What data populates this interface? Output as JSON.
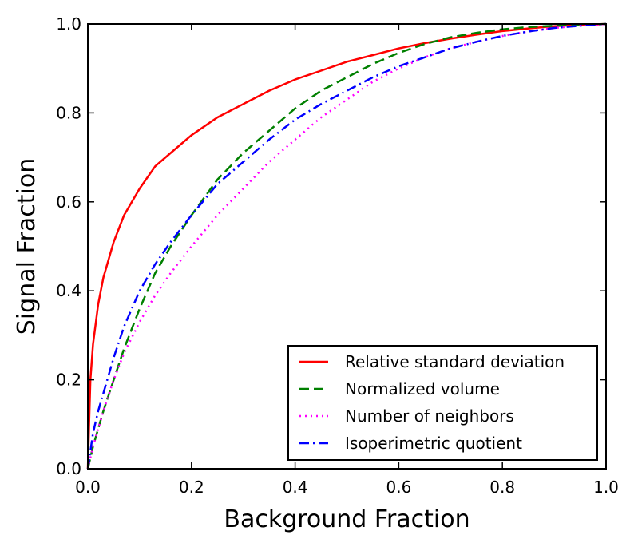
{
  "chart_data": {
    "type": "line",
    "title": "",
    "xlabel": "Background Fraction",
    "ylabel": "Signal Fraction",
    "xlim": [
      0.0,
      1.0
    ],
    "ylim": [
      0.0,
      1.0
    ],
    "xticks": [
      "0.0",
      "0.2",
      "0.4",
      "0.6",
      "0.8",
      "1.0"
    ],
    "yticks": [
      "0.0",
      "0.2",
      "0.4",
      "0.6",
      "0.8",
      "1.0"
    ],
    "grid": false,
    "legend_position": "lower-right",
    "series": [
      {
        "name": "Relative standard deviation",
        "color": "#ff0000",
        "style": "solid",
        "x": [
          0,
          0.005,
          0.01,
          0.02,
          0.03,
          0.05,
          0.07,
          0.1,
          0.13,
          0.16,
          0.2,
          0.25,
          0.3,
          0.35,
          0.4,
          0.45,
          0.5,
          0.55,
          0.6,
          0.65,
          0.7,
          0.75,
          0.8,
          0.85,
          0.9,
          0.95,
          1.0
        ],
        "y": [
          0,
          0.2,
          0.28,
          0.37,
          0.43,
          0.51,
          0.57,
          0.63,
          0.68,
          0.71,
          0.75,
          0.79,
          0.82,
          0.85,
          0.875,
          0.895,
          0.915,
          0.93,
          0.945,
          0.957,
          0.967,
          0.976,
          0.984,
          0.99,
          0.995,
          0.998,
          1.0
        ]
      },
      {
        "name": "Normalized volume",
        "color": "#008000",
        "style": "dashed",
        "x": [
          0,
          0.01,
          0.02,
          0.03,
          0.05,
          0.07,
          0.1,
          0.13,
          0.16,
          0.2,
          0.25,
          0.3,
          0.35,
          0.4,
          0.45,
          0.5,
          0.55,
          0.6,
          0.65,
          0.7,
          0.75,
          0.8,
          0.85,
          0.9,
          0.95,
          1.0
        ],
        "y": [
          0,
          0.05,
          0.09,
          0.13,
          0.2,
          0.27,
          0.36,
          0.44,
          0.5,
          0.57,
          0.65,
          0.71,
          0.76,
          0.81,
          0.85,
          0.88,
          0.91,
          0.935,
          0.955,
          0.97,
          0.98,
          0.988,
          0.993,
          0.996,
          0.998,
          1.0
        ]
      },
      {
        "name": "Number of neighbors",
        "color": "#ff00ff",
        "style": "dotted",
        "x": [
          0,
          0.01,
          0.02,
          0.03,
          0.05,
          0.07,
          0.1,
          0.13,
          0.16,
          0.2,
          0.25,
          0.3,
          0.35,
          0.4,
          0.45,
          0.5,
          0.55,
          0.6,
          0.65,
          0.7,
          0.75,
          0.8,
          0.85,
          0.9,
          0.95,
          1.0
        ],
        "y": [
          0,
          0.05,
          0.09,
          0.13,
          0.2,
          0.26,
          0.33,
          0.39,
          0.44,
          0.5,
          0.57,
          0.63,
          0.69,
          0.74,
          0.79,
          0.83,
          0.87,
          0.9,
          0.925,
          0.945,
          0.96,
          0.973,
          0.983,
          0.991,
          0.996,
          1.0
        ]
      },
      {
        "name": "Isoperimetric quotient",
        "color": "#0000ff",
        "style": "dashdot",
        "x": [
          0,
          0.01,
          0.02,
          0.03,
          0.05,
          0.07,
          0.1,
          0.13,
          0.16,
          0.2,
          0.25,
          0.3,
          0.35,
          0.4,
          0.45,
          0.5,
          0.55,
          0.6,
          0.65,
          0.7,
          0.75,
          0.8,
          0.85,
          0.9,
          0.95,
          1.0
        ],
        "y": [
          0,
          0.08,
          0.13,
          0.17,
          0.25,
          0.32,
          0.4,
          0.46,
          0.51,
          0.57,
          0.64,
          0.69,
          0.74,
          0.785,
          0.82,
          0.85,
          0.88,
          0.905,
          0.925,
          0.945,
          0.96,
          0.973,
          0.983,
          0.991,
          0.996,
          1.0
        ]
      }
    ]
  }
}
